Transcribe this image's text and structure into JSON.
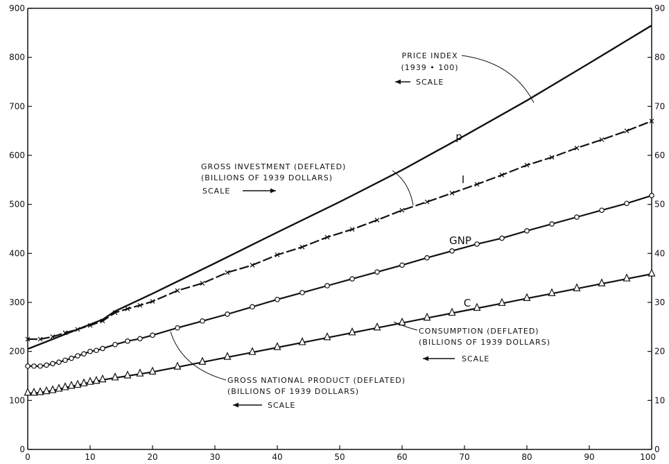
{
  "chart_data": {
    "type": "line",
    "x_range": [
      0,
      100
    ],
    "x_ticks": [
      0,
      10,
      20,
      30,
      40,
      50,
      60,
      70,
      80,
      90,
      100
    ],
    "left_axis": {
      "range": [
        0,
        900
      ],
      "ticks": [
        0,
        100,
        200,
        300,
        400,
        500,
        600,
        700,
        800,
        900
      ]
    },
    "right_axis": {
      "range": [
        0,
        90
      ],
      "ticks": [
        0,
        10,
        20,
        30,
        40,
        50,
        60,
        70,
        80,
        90
      ]
    },
    "grid": false,
    "series": [
      {
        "key": "p",
        "label": "p",
        "marker": "none",
        "axis": "left",
        "x": [
          0,
          2,
          4,
          6,
          8,
          10,
          12,
          14,
          20,
          30,
          40,
          50,
          60,
          70,
          80,
          90,
          100
        ],
        "y": [
          205,
          215,
          225,
          235,
          245,
          255,
          265,
          282,
          318,
          380,
          443,
          505,
          570,
          640,
          712,
          788,
          865
        ]
      },
      {
        "key": "I",
        "label": "I",
        "marker": "x",
        "axis": "right",
        "x": [
          0,
          2,
          4,
          6,
          8,
          10,
          12,
          14,
          16,
          18,
          20,
          24,
          28,
          32,
          36,
          40,
          44,
          48,
          52,
          56,
          60,
          64,
          68,
          72,
          76,
          80,
          84,
          88,
          92,
          96,
          100
        ],
        "y": [
          22.5,
          22.5,
          23.0,
          23.8,
          24.5,
          25.3,
          26.2,
          27.9,
          28.7,
          29.4,
          30.2,
          32.4,
          33.9,
          36.1,
          37.6,
          39.7,
          41.3,
          43.3,
          44.9,
          46.8,
          48.8,
          50.5,
          52.3,
          54.1,
          56.0,
          58.0,
          59.6,
          61.5,
          63.2,
          65.0,
          67.0
        ]
      },
      {
        "key": "GNP",
        "label": "GNP",
        "marker": "circle",
        "axis": "right",
        "x": [
          0,
          1,
          2,
          3,
          4,
          5,
          6,
          7,
          8,
          9,
          10,
          11,
          12,
          14,
          16,
          18,
          20,
          24,
          28,
          32,
          36,
          40,
          44,
          48,
          52,
          56,
          60,
          64,
          68,
          72,
          76,
          80,
          84,
          88,
          92,
          96,
          100
        ],
        "y": [
          17.0,
          17.0,
          17.0,
          17.2,
          17.5,
          17.8,
          18.2,
          18.6,
          19.1,
          19.5,
          20.0,
          20.2,
          20.6,
          21.4,
          22.1,
          22.6,
          23.3,
          24.8,
          26.2,
          27.6,
          29.1,
          30.6,
          32.0,
          33.4,
          34.8,
          36.2,
          37.6,
          39.1,
          40.5,
          41.9,
          43.1,
          44.6,
          46.0,
          47.4,
          48.8,
          50.2,
          51.8
        ]
      },
      {
        "key": "C",
        "label": "C",
        "marker": "triangle",
        "axis": "right",
        "x": [
          0,
          1,
          2,
          3,
          4,
          5,
          6,
          7,
          8,
          9,
          10,
          11,
          12,
          14,
          16,
          18,
          20,
          24,
          28,
          32,
          36,
          40,
          44,
          48,
          52,
          56,
          60,
          64,
          68,
          72,
          76,
          80,
          84,
          88,
          92,
          96,
          100
        ],
        "y": [
          11.5,
          11.5,
          11.6,
          11.8,
          12.0,
          12.3,
          12.6,
          12.9,
          13.1,
          13.4,
          13.7,
          13.9,
          14.2,
          14.6,
          15.0,
          15.4,
          15.8,
          16.8,
          17.8,
          18.8,
          19.8,
          20.8,
          21.8,
          22.8,
          23.8,
          24.8,
          25.8,
          26.8,
          27.8,
          28.8,
          29.8,
          30.8,
          31.8,
          32.8,
          33.8,
          34.8,
          35.8
        ]
      }
    ],
    "annotations": [
      {
        "key": "price",
        "lines": [
          "PRICE INDEX",
          "(1939 • 100)",
          "SCALE"
        ],
        "scale_arrow": "left"
      },
      {
        "key": "investment",
        "lines": [
          "GROSS INVESTMENT (DEFLATED)",
          "(BILLIONS OF 1939 DOLLARS)",
          "SCALE"
        ],
        "scale_arrow": "right"
      },
      {
        "key": "consumption",
        "lines": [
          "CONSUMPTION (DEFLATED)",
          "(BILLIONS OF 1939 DOLLARS)",
          "SCALE"
        ],
        "scale_arrow": "left"
      },
      {
        "key": "gnp",
        "lines": [
          "GROSS NATIONAL PRODUCT (DEFLATED)",
          "(BILLIONS OF 1939 DOLLARS)",
          "SCALE"
        ],
        "scale_arrow": "left"
      }
    ]
  }
}
